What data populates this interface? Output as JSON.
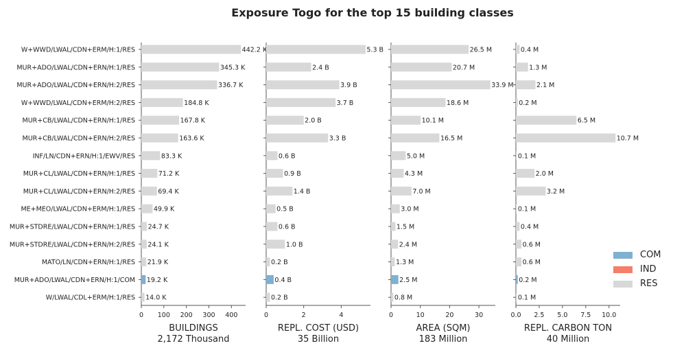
{
  "chart_data": {
    "type": "bar",
    "orientation": "horizontal",
    "title": "Exposure Togo for the top 15 building classes",
    "categories": [
      "W+WWD/LWAL/CDN+ERM/H:1/RES",
      "MUR+ADO/LWAL/CDN+ERN/H:1/RES",
      "MUR+ADO/LWAL/CDN+ERN/H:2/RES",
      "W+WWD/LWAL/CDN+ERM/H:2/RES",
      "MUR+CB/LWAL/CDN+ERN/H:1/RES",
      "MUR+CB/LWAL/CDN+ERN/H:2/RES",
      "INF/LN/CDN+ERN/H:1/EWV/RES",
      "MUR+CL/LWAL/CDN+ERN/H:1/RES",
      "MUR+CL/LWAL/CDN+ERN/H:2/RES",
      "ME+MEO/LWAL/CDN+ERM/H:1/RES",
      "MUR+STDRE/LWAL/CDN+ERN/H:1/RES",
      "MUR+STDRE/LWAL/CDN+ERN/H:2/RES",
      "MATO/LN/CDN+ERN/H:1/RES",
      "MUR+ADO/LWAL/CDN+ERN/H:1/COM",
      "W/LWAL/CDL+ERM/H:1/RES"
    ],
    "occupancy": [
      "RES",
      "RES",
      "RES",
      "RES",
      "RES",
      "RES",
      "RES",
      "RES",
      "RES",
      "RES",
      "RES",
      "RES",
      "RES",
      "COM",
      "RES"
    ],
    "legend": [
      {
        "name": "COM",
        "color": "#7fb0d2"
      },
      {
        "name": "IND",
        "color": "#f47f6b"
      },
      {
        "name": "RES",
        "color": "#d8d8d8"
      }
    ],
    "legend_position": "lower-right",
    "panels": [
      {
        "xlabel": "BUILDINGS",
        "subtitle": "2,172 Thousand",
        "values": [
          442.2,
          345.3,
          336.7,
          184.8,
          167.8,
          163.6,
          83.3,
          71.2,
          69.4,
          49.9,
          24.7,
          24.1,
          21.9,
          19.2,
          14.0
        ],
        "value_labels": [
          "442.2 K",
          "345.3 K",
          "336.7 K",
          "184.8 K",
          "167.8 K",
          "163.6 K",
          "83.3 K",
          "71.2 K",
          "69.4 K",
          "49.9 K",
          "24.7 K",
          "24.1 K",
          "21.9 K",
          "19.2 K",
          "14.0 K"
        ],
        "xlim": [
          0,
          463
        ],
        "ticks": [
          0,
          100,
          200,
          300,
          400
        ],
        "tick_labels": [
          "0",
          "100",
          "200",
          "300",
          "400"
        ]
      },
      {
        "xlabel": "REPL. COST (USD)",
        "subtitle": "35 Billion",
        "values": [
          5.3,
          2.4,
          3.9,
          3.7,
          2.0,
          3.3,
          0.6,
          0.9,
          1.4,
          0.5,
          0.6,
          1.0,
          0.2,
          0.4,
          0.2
        ],
        "value_labels": [
          "5.3 B",
          "2.4 B",
          "3.9 B",
          "3.7 B",
          "2.0 B",
          "3.3 B",
          "0.6 B",
          "0.9 B",
          "1.4 B",
          "0.5 B",
          "0.6 B",
          "1.0 B",
          "0.2 B",
          "0.4 B",
          "0.2 B"
        ],
        "xlim": [
          0,
          5.56
        ],
        "ticks": [
          0,
          2,
          4
        ],
        "tick_labels": [
          "0",
          "2",
          "4"
        ]
      },
      {
        "xlabel": "AREA (SQM)",
        "subtitle": "183 Million",
        "values": [
          26.5,
          20.7,
          33.9,
          18.6,
          10.1,
          16.5,
          5.0,
          4.3,
          7.0,
          3.0,
          1.5,
          2.4,
          1.3,
          2.5,
          0.8
        ],
        "value_labels": [
          "26.5 M",
          "20.7 M",
          "33.9 M",
          "18.6 M",
          "10.1 M",
          "16.5 M",
          "5.0 M",
          "4.3 M",
          "7.0 M",
          "3.0 M",
          "1.5 M",
          "2.4 M",
          "1.3 M",
          "2.5 M",
          "0.8 M"
        ],
        "xlim": [
          0,
          35.6
        ],
        "ticks": [
          0,
          10,
          20,
          30
        ],
        "tick_labels": [
          "0",
          "10",
          "20",
          "30"
        ]
      },
      {
        "xlabel": "REPL. CARBON TON",
        "subtitle": "40 Million",
        "values": [
          0.4,
          1.3,
          2.1,
          0.2,
          6.5,
          10.7,
          0.1,
          2.0,
          3.2,
          0.1,
          0.4,
          0.6,
          0.6,
          0.2,
          0.1
        ],
        "value_labels": [
          "0.4 M",
          "1.3 M",
          "2.1 M",
          "0.2 M",
          "6.5 M",
          "10.7 M",
          "0.1 M",
          "2.0 M",
          "3.2 M",
          "0.1 M",
          "0.4 M",
          "0.6 M",
          "0.6 M",
          "0.2 M",
          "0.1 M"
        ],
        "xlim": [
          0,
          11.2
        ],
        "ticks": [
          0,
          2.5,
          5,
          7.5,
          10
        ],
        "tick_labels": [
          "0.0",
          "2.5",
          "5.0",
          "7.5",
          "10.0"
        ]
      }
    ]
  }
}
